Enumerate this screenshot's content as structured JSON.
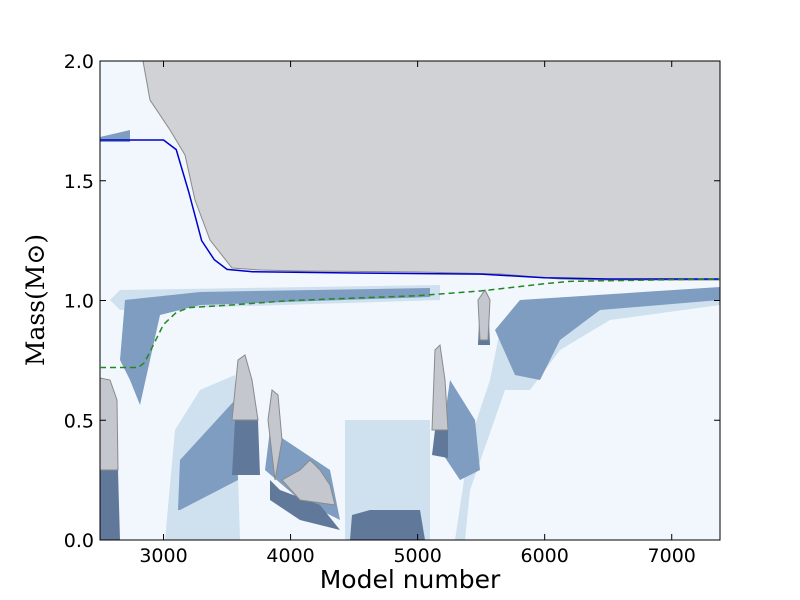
{
  "chart_data": {
    "type": "line",
    "xlabel": "Model number",
    "ylabel": "Mass(M⊙)",
    "xlim": [
      2500,
      7380
    ],
    "ylim": [
      0,
      2
    ],
    "xticks": [
      3000,
      4000,
      5000,
      6000,
      7000
    ],
    "yticks": [
      {
        "value": 0,
        "label": "0.0"
      },
      {
        "value": 0.5,
        "label": "0.5"
      },
      {
        "value": 1,
        "label": "1.0"
      },
      {
        "value": 1.5,
        "label": "1.5"
      },
      {
        "value": 2,
        "label": "2.0"
      }
    ],
    "series": [
      {
        "color": "#0000cc",
        "dash": false,
        "x": [
          2500,
          3000,
          3100,
          3200,
          3300,
          3400,
          3500,
          3700,
          4500,
          5500,
          6000,
          6500,
          7380
        ],
        "values": [
          1.67,
          1.67,
          1.63,
          1.45,
          1.25,
          1.17,
          1.13,
          1.12,
          1.115,
          1.11,
          1.095,
          1.09,
          1.09
        ]
      },
      {
        "color": "#228822",
        "dash": true,
        "x": [
          2500,
          2800,
          2850,
          3000,
          3100,
          3200,
          3500,
          4000,
          5000,
          5500,
          6000,
          6200,
          7380
        ],
        "values": [
          0.72,
          0.72,
          0.74,
          0.9,
          0.95,
          0.97,
          0.98,
          1.0,
          1.02,
          1.04,
          1.07,
          1.08,
          1.09
        ]
      }
    ]
  }
}
